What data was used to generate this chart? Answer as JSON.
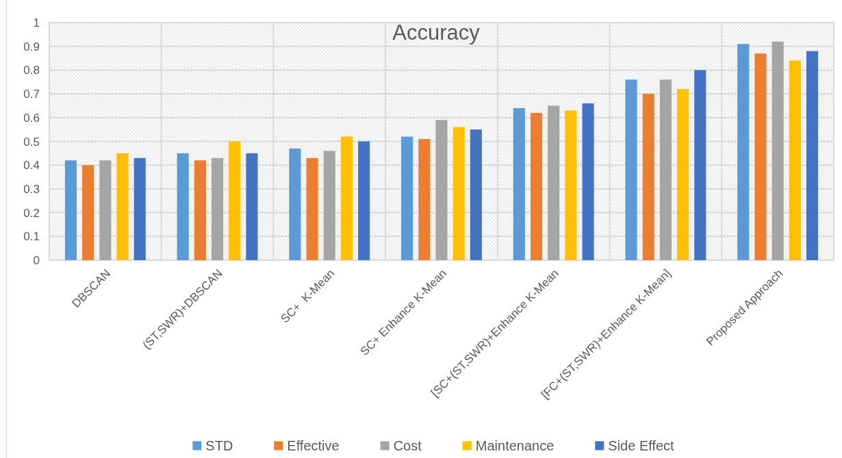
{
  "chart_data": {
    "type": "bar",
    "title": "Accuracy",
    "categories": [
      "DBSCAN",
      "(ST,SWR)+DBSCAN",
      "SC+  K-Mean",
      "SC+ Enhance K-Mean",
      "[SC+(ST,SWR)+Enhance K-Mean",
      "[FC+(ST,SWR)+Enhance K-Mean]",
      "Proposed Approach"
    ],
    "series": [
      {
        "name": "STD",
        "color": "#5b9bd5",
        "values": [
          0.42,
          0.45,
          0.47,
          0.52,
          0.64,
          0.76,
          0.91
        ]
      },
      {
        "name": "Effective",
        "color": "#ed7d31",
        "values": [
          0.4,
          0.42,
          0.43,
          0.51,
          0.62,
          0.7,
          0.87
        ]
      },
      {
        "name": "Cost",
        "color": "#a5a5a5",
        "values": [
          0.42,
          0.43,
          0.46,
          0.59,
          0.65,
          0.76,
          0.92
        ]
      },
      {
        "name": "Maintenance",
        "color": "#ffc000",
        "values": [
          0.45,
          0.5,
          0.52,
          0.56,
          0.63,
          0.72,
          0.84
        ]
      },
      {
        "name": "Side Effect",
        "color": "#4472c4",
        "values": [
          0.43,
          0.45,
          0.5,
          0.55,
          0.66,
          0.8,
          0.88
        ]
      }
    ],
    "ylim": [
      0,
      1
    ],
    "yticks": [
      0,
      0.1,
      0.2,
      0.3,
      0.4,
      0.5,
      0.6,
      0.7,
      0.8,
      0.9,
      1
    ],
    "grid": true,
    "legend": "bottom"
  }
}
